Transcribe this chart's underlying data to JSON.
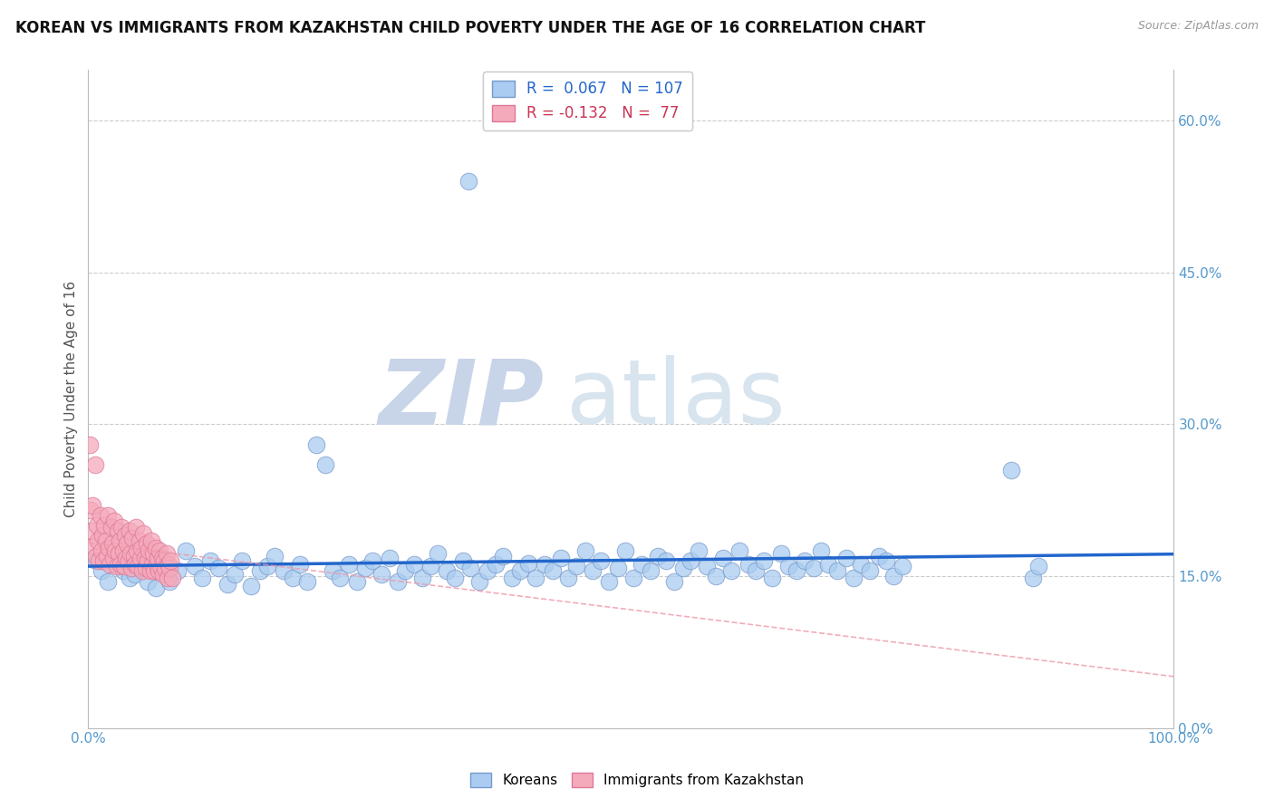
{
  "title": "KOREAN VS IMMIGRANTS FROM KAZAKHSTAN CHILD POVERTY UNDER THE AGE OF 16 CORRELATION CHART",
  "source_text": "Source: ZipAtlas.com",
  "ylabel": "Child Poverty Under the Age of 16",
  "xlim": [
    0,
    1.0
  ],
  "ylim": [
    0,
    0.65
  ],
  "ytick_vals": [
    0.0,
    0.15,
    0.3,
    0.45,
    0.6
  ],
  "ytick_labels": [
    "0.0%",
    "15.0%",
    "30.0%",
    "45.0%",
    "60.0%"
  ],
  "xtick_vals": [
    0.0,
    1.0
  ],
  "xtick_labels": [
    "0.0%",
    "100.0%"
  ],
  "background_color": "#ffffff",
  "grid_color": "#cccccc",
  "korean_fill": "#aaccf0",
  "korean_edge": "#7799cc",
  "kazakh_fill": "#f5aabb",
  "kazakh_edge": "#dd7799",
  "korean_line_color": "#2266cc",
  "kazakh_line_color": "#ee99aa",
  "korean_R": 0.067,
  "korean_N": 107,
  "kazakh_R": -0.132,
  "kazakh_N": 77,
  "legend_labels": [
    "Koreans",
    "Immigrants from Kazakhstan"
  ],
  "title_fontsize": 12,
  "ylabel_fontsize": 11,
  "tick_fontsize": 11,
  "legend_fontsize": 11,
  "watermark_zip": "ZIP",
  "watermark_atlas": "atlas",
  "korean_x": [
    0.007,
    0.012,
    0.018,
    0.022,
    0.028,
    0.032,
    0.038,
    0.043,
    0.048,
    0.055,
    0.062,
    0.068,
    0.075,
    0.082,
    0.09,
    0.098,
    0.105,
    0.112,
    0.12,
    0.128,
    0.135,
    0.142,
    0.15,
    0.158,
    0.165,
    0.172,
    0.18,
    0.188,
    0.195,
    0.202,
    0.21,
    0.218,
    0.225,
    0.232,
    0.24,
    0.248,
    0.255,
    0.262,
    0.27,
    0.278,
    0.285,
    0.292,
    0.3,
    0.308,
    0.315,
    0.322,
    0.33,
    0.338,
    0.345,
    0.352,
    0.36,
    0.368,
    0.375,
    0.382,
    0.39,
    0.398,
    0.405,
    0.412,
    0.42,
    0.428,
    0.435,
    0.442,
    0.45,
    0.458,
    0.465,
    0.472,
    0.48,
    0.488,
    0.495,
    0.502,
    0.51,
    0.518,
    0.525,
    0.532,
    0.54,
    0.548,
    0.555,
    0.562,
    0.57,
    0.578,
    0.585,
    0.592,
    0.6,
    0.608,
    0.615,
    0.622,
    0.63,
    0.638,
    0.645,
    0.652,
    0.66,
    0.668,
    0.675,
    0.682,
    0.69,
    0.698,
    0.705,
    0.712,
    0.72,
    0.728,
    0.735,
    0.742,
    0.75,
    0.85,
    0.87,
    0.875,
    0.35
  ],
  "korean_y": [
    0.165,
    0.155,
    0.145,
    0.17,
    0.16,
    0.155,
    0.148,
    0.152,
    0.158,
    0.145,
    0.138,
    0.162,
    0.145,
    0.155,
    0.175,
    0.16,
    0.148,
    0.165,
    0.158,
    0.142,
    0.152,
    0.165,
    0.14,
    0.155,
    0.16,
    0.17,
    0.155,
    0.148,
    0.162,
    0.145,
    0.28,
    0.26,
    0.155,
    0.148,
    0.162,
    0.145,
    0.158,
    0.165,
    0.152,
    0.168,
    0.145,
    0.155,
    0.162,
    0.148,
    0.16,
    0.172,
    0.155,
    0.148,
    0.165,
    0.158,
    0.145,
    0.155,
    0.162,
    0.17,
    0.148,
    0.155,
    0.163,
    0.148,
    0.162,
    0.155,
    0.168,
    0.148,
    0.16,
    0.175,
    0.155,
    0.165,
    0.145,
    0.158,
    0.175,
    0.148,
    0.162,
    0.155,
    0.17,
    0.165,
    0.145,
    0.158,
    0.165,
    0.175,
    0.16,
    0.15,
    0.168,
    0.155,
    0.175,
    0.162,
    0.155,
    0.165,
    0.148,
    0.172,
    0.16,
    0.155,
    0.165,
    0.158,
    0.175,
    0.162,
    0.155,
    0.168,
    0.148,
    0.162,
    0.155,
    0.17,
    0.165,
    0.15,
    0.16,
    0.255,
    0.148,
    0.16,
    0.54
  ],
  "kazakh_x": [
    0.002,
    0.003,
    0.004,
    0.005,
    0.006,
    0.007,
    0.008,
    0.009,
    0.01,
    0.011,
    0.012,
    0.013,
    0.014,
    0.015,
    0.016,
    0.017,
    0.018,
    0.019,
    0.02,
    0.021,
    0.022,
    0.023,
    0.024,
    0.025,
    0.026,
    0.027,
    0.028,
    0.029,
    0.03,
    0.031,
    0.032,
    0.033,
    0.034,
    0.035,
    0.036,
    0.037,
    0.038,
    0.039,
    0.04,
    0.041,
    0.042,
    0.043,
    0.044,
    0.045,
    0.046,
    0.047,
    0.048,
    0.049,
    0.05,
    0.051,
    0.052,
    0.053,
    0.054,
    0.055,
    0.056,
    0.057,
    0.058,
    0.059,
    0.06,
    0.061,
    0.062,
    0.063,
    0.064,
    0.065,
    0.066,
    0.067,
    0.068,
    0.069,
    0.07,
    0.071,
    0.072,
    0.073,
    0.074,
    0.075,
    0.076,
    0.077,
    0.001
  ],
  "kazakh_y": [
    0.215,
    0.195,
    0.22,
    0.18,
    0.26,
    0.17,
    0.2,
    0.185,
    0.165,
    0.21,
    0.175,
    0.19,
    0.165,
    0.2,
    0.185,
    0.17,
    0.21,
    0.178,
    0.162,
    0.198,
    0.182,
    0.168,
    0.205,
    0.175,
    0.16,
    0.195,
    0.172,
    0.185,
    0.162,
    0.198,
    0.175,
    0.16,
    0.19,
    0.168,
    0.182,
    0.165,
    0.195,
    0.172,
    0.158,
    0.188,
    0.17,
    0.162,
    0.198,
    0.175,
    0.16,
    0.185,
    0.168,
    0.178,
    0.155,
    0.192,
    0.168,
    0.158,
    0.182,
    0.165,
    0.175,
    0.155,
    0.185,
    0.162,
    0.172,
    0.155,
    0.178,
    0.162,
    0.168,
    0.155,
    0.175,
    0.158,
    0.168,
    0.152,
    0.165,
    0.158,
    0.172,
    0.148,
    0.162,
    0.158,
    0.165,
    0.148,
    0.28
  ]
}
